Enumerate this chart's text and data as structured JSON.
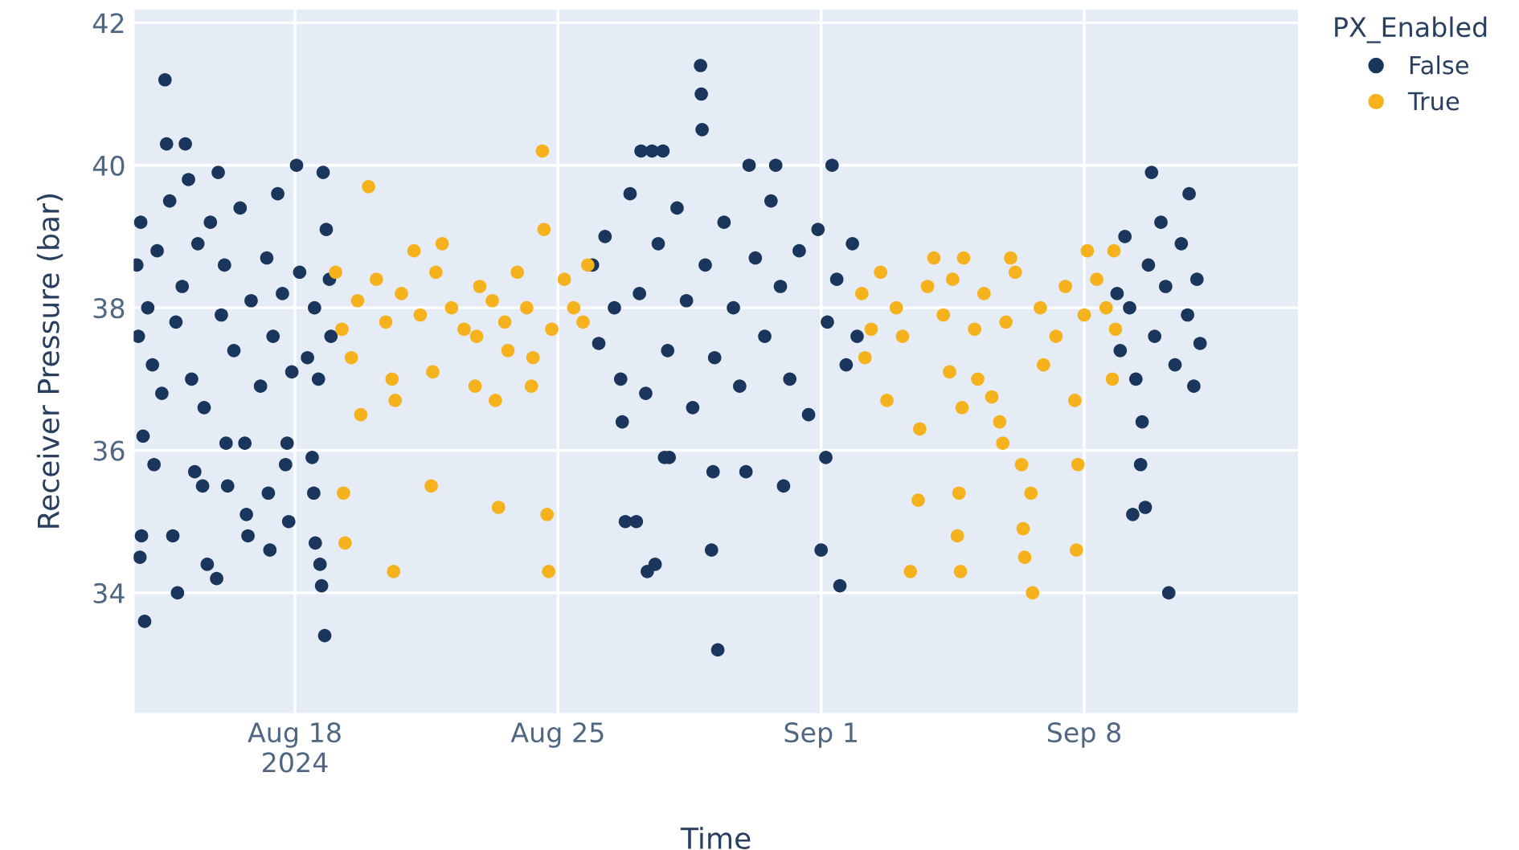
{
  "chart_data": {
    "type": "scatter",
    "xlabel": "Time",
    "ylabel": "Receiver Pressure (bar)",
    "legend_title": "PX_Enabled",
    "legend": "top right",
    "grid": true,
    "marker": "circle",
    "xlim": [
      "2024-08-13T17:00",
      "2024-09-13T17:00"
    ],
    "ylim": [
      32.3,
      42.2
    ],
    "xticks": [
      {
        "value": "2024-08-18",
        "label": "Aug 18\n2024"
      },
      {
        "value": "2024-08-25",
        "label": "Aug 25"
      },
      {
        "value": "2024-09-01",
        "label": "Sep 1"
      },
      {
        "value": "2024-09-08",
        "label": "Sep 8"
      }
    ],
    "yticks": [
      34,
      36,
      38,
      40,
      42
    ],
    "series": [
      {
        "name": "False",
        "color": "#1b365d",
        "x": [
          "2024-08-14T13:00",
          "2024-08-14T14:00",
          "2024-08-15T02:00",
          "2024-08-15T04:00",
          "2024-08-15T23:00",
          "2024-08-18T01:00",
          "2024-08-18T18:00",
          "2024-08-14T00:00",
          "2024-08-14T21:00",
          "2024-08-18T19:00",
          "2024-08-13T22:00",
          "2024-08-13T21:00",
          "2024-08-14T18:00",
          "2024-08-15T16:00",
          "2024-08-15T22:00",
          "2024-08-16T18:00",
          "2024-08-17T08:00",
          "2024-08-17T20:00",
          "2024-08-17T07:00",
          "2024-08-16T17:00",
          "2024-08-15T13:00",
          "2024-08-16T05:00",
          "2024-08-15T08:00",
          "2024-08-13T23:00",
          "2024-08-14T06:00",
          "2024-08-16T04:00",
          "2024-08-16T16:00",
          "2024-08-18T13:00",
          "2024-08-18T17:00",
          "2024-08-18T16:00",
          "2024-08-18T12:00",
          "2024-08-18T11:00",
          "2024-08-17T19:00",
          "2024-08-17T18:00",
          "2024-08-13T19:00",
          "2024-08-13T20:00",
          "2024-08-13T21:30",
          "2024-08-14T02:00",
          "2024-08-14T05:00",
          "2024-08-14T08:00",
          "2024-08-14T11:00",
          "2024-08-14T16:00",
          "2024-08-14T20:00",
          "2024-08-15T00:00",
          "2024-08-15T06:00",
          "2024-08-15T10:00",
          "2024-08-15T14:00",
          "2024-08-15T18:00",
          "2024-08-16T01:00",
          "2024-08-16T03:00",
          "2024-08-16T09:00",
          "2024-08-16T13:00",
          "2024-08-16T20:00",
          "2024-08-17T02:00",
          "2024-08-17T06:00",
          "2024-08-17T10:00",
          "2024-08-17T13:00",
          "2024-08-17T16:00",
          "2024-08-17T22:00",
          "2024-08-18T03:00",
          "2024-08-18T08:00",
          "2024-08-18T12:30",
          "2024-08-18T15:00",
          "2024-08-18T20:00",
          "2024-08-18T22:00",
          "2024-08-18T23:00",
          "2024-08-28T19:00",
          "2024-08-28T19:30",
          "2024-08-28T20:00",
          "2024-08-29T06:00",
          "2024-08-27T02:00",
          "2024-08-27T14:00",
          "2024-08-29T02:00",
          "2024-09-01T00:00",
          "2024-09-01T12:00",
          "2024-08-26T19:00",
          "2024-08-27T09:00",
          "2024-08-27T05:00",
          "2024-08-27T19:00",
          "2024-08-27T12:00",
          "2024-08-30T02:00",
          "2024-08-30T19:00",
          "2024-09-01T07:00",
          "2024-08-29T03:00",
          "2024-08-30T00:00",
          "2024-08-31T00:00",
          "2024-09-01T03:00",
          "2024-08-27T23:00",
          "2024-08-26T17:00",
          "2024-08-27T20:00",
          "2024-08-25T22:00",
          "2024-08-26T02:00",
          "2024-08-26T06:00",
          "2024-08-26T12:00",
          "2024-08-26T16:00",
          "2024-08-26T22:00",
          "2024-08-27T04:00",
          "2024-08-27T08:00",
          "2024-08-27T16:00",
          "2024-08-27T22:00",
          "2024-08-28T04:00",
          "2024-08-28T10:00",
          "2024-08-28T14:00",
          "2024-08-28T22:00",
          "2024-08-29T04:00",
          "2024-08-29T10:00",
          "2024-08-29T16:00",
          "2024-08-29T20:00",
          "2024-08-30T06:00",
          "2024-08-30T12:00",
          "2024-08-30T16:00",
          "2024-08-30T22:00",
          "2024-08-31T04:00",
          "2024-08-31T10:00",
          "2024-08-31T16:00",
          "2024-08-31T22:00",
          "2024-09-01T04:00",
          "2024-09-01T10:00",
          "2024-09-01T16:00",
          "2024-09-01T20:00",
          "2024-09-01T23:00",
          "2024-09-09T19:00",
          "2024-09-10T19:00",
          "2024-09-09T07:00",
          "2024-09-09T15:00",
          "2024-09-09T12:00",
          "2024-09-10T06:00",
          "2024-09-09T13:00",
          "2024-09-08T21:00",
          "2024-09-08T23:00",
          "2024-09-09T02:00",
          "2024-09-09T05:00",
          "2024-09-09T09:00",
          "2024-09-09T17:00",
          "2024-09-09T21:00",
          "2024-09-10T01:00",
          "2024-09-10T04:00",
          "2024-09-10T10:00",
          "2024-09-10T14:00",
          "2024-09-10T18:00",
          "2024-09-10T22:00",
          "2024-09-11T00:00",
          "2024-09-11T02:00"
        ],
        "values": [
          41.2,
          40.3,
          40.3,
          39.8,
          39.9,
          40.0,
          39.9,
          33.6,
          34.0,
          33.4,
          34.8,
          34.5,
          34.8,
          34.4,
          34.2,
          34.8,
          34.6,
          35.0,
          35.4,
          35.1,
          35.5,
          35.5,
          35.7,
          36.2,
          35.8,
          36.1,
          36.1,
          34.7,
          34.1,
          34.4,
          35.4,
          35.9,
          36.1,
          35.8,
          38.6,
          37.6,
          39.2,
          38.0,
          37.2,
          38.8,
          36.8,
          39.5,
          37.8,
          38.3,
          37.0,
          38.9,
          36.6,
          39.2,
          37.9,
          38.6,
          37.4,
          39.4,
          38.1,
          36.9,
          38.7,
          37.6,
          39.6,
          38.2,
          37.1,
          38.5,
          37.3,
          38.0,
          37.0,
          39.1,
          38.4,
          37.6,
          41.4,
          41.0,
          40.5,
          33.2,
          35.0,
          34.4,
          34.6,
          34.6,
          34.1,
          35.0,
          34.3,
          40.2,
          40.2,
          40.2,
          40.0,
          40.0,
          40.0,
          35.7,
          35.7,
          35.5,
          35.9,
          35.9,
          36.4,
          35.9,
          38.6,
          37.5,
          39.0,
          38.0,
          37.0,
          39.6,
          38.2,
          36.8,
          38.9,
          37.4,
          39.4,
          38.1,
          36.6,
          38.6,
          37.3,
          39.2,
          38.0,
          36.9,
          38.7,
          37.6,
          39.5,
          38.3,
          37.0,
          38.8,
          36.5,
          39.1,
          37.8,
          38.4,
          37.2,
          38.9,
          37.6,
          39.9,
          39.6,
          35.1,
          35.2,
          35.8,
          34.0,
          36.4,
          38.2,
          37.4,
          39.0,
          38.0,
          37.0,
          38.6,
          37.6,
          39.2,
          38.3,
          37.2,
          38.9,
          37.9,
          36.9,
          38.4,
          37.5
        ]
      },
      {
        "name": "True",
        "color": "#f5b21d",
        "x": [
          "2024-08-19T23:00",
          "2024-08-24T14:00",
          "2024-08-24T15:00",
          "2024-08-21T04:00",
          "2024-08-21T22:00",
          "2024-08-19T07:00",
          "2024-08-19T08:00",
          "2024-08-20T15:00",
          "2024-08-21T15:00",
          "2024-08-23T10:00",
          "2024-08-24T17:00",
          "2024-08-24T18:00",
          "2024-08-19T18:00",
          "2024-08-20T16:00",
          "2024-08-20T14:00",
          "2024-08-21T16:00",
          "2024-08-22T19:00",
          "2024-08-23T08:00",
          "2024-08-24T07:00",
          "2024-08-24T08:00",
          "2024-08-19T12:00",
          "2024-08-22T20:00",
          "2024-08-23T16:00",
          "2024-08-19T02:00",
          "2024-08-19T06:00",
          "2024-08-19T16:00",
          "2024-08-20T04:00",
          "2024-08-20T10:00",
          "2024-08-20T20:00",
          "2024-08-21T08:00",
          "2024-08-21T18:00",
          "2024-08-22T04:00",
          "2024-08-22T12:00",
          "2024-08-22T22:00",
          "2024-08-23T06:00",
          "2024-08-23T14:00",
          "2024-08-23T22:00",
          "2024-08-24T04:00",
          "2024-08-24T20:00",
          "2024-08-25T04:00",
          "2024-08-25T10:00",
          "2024-08-25T16:00",
          "2024-08-25T19:00",
          "2024-09-03T14:00",
          "2024-09-03T15:00",
          "2024-09-03T09:00",
          "2024-09-02T18:00",
          "2024-09-04T16:00",
          "2024-09-04T15:00",
          "2024-09-04T17:00",
          "2024-09-04T18:00",
          "2024-09-05T13:00",
          "2024-09-05T18:00",
          "2024-09-06T09:00",
          "2024-09-06T08:00",
          "2024-09-06T10:00",
          "2024-09-06T15:00",
          "2024-09-06T14:00",
          "2024-09-07T19:00",
          "2024-09-07T18:00",
          "2024-09-07T20:00",
          "2024-09-08T18:00",
          "2024-09-04T00:00",
          "2024-09-04T19:00",
          "2024-09-06T01:00",
          "2024-09-08T02:00",
          "2024-09-08T19:00",
          "2024-09-02T02:00",
          "2024-09-02T08:00",
          "2024-09-02T14:00",
          "2024-09-03T00:00",
          "2024-09-03T04:00",
          "2024-09-03T20:00",
          "2024-09-04T06:00",
          "2024-09-04T12:00",
          "2024-09-05T02:00",
          "2024-09-05T08:00",
          "2024-09-05T22:00",
          "2024-09-06T04:00",
          "2024-09-06T20:00",
          "2024-09-07T06:00",
          "2024-09-07T12:00",
          "2024-09-08T00:00",
          "2024-09-08T08:00",
          "2024-09-08T14:00",
          "2024-09-08T20:00",
          "2024-09-02T04:00",
          "2024-09-04T10:00",
          "2024-09-05T04:00",
          "2024-09-06T22:00",
          "2024-09-05T20:00"
        ],
        "values": [
          39.7,
          40.2,
          39.1,
          38.8,
          38.9,
          35.4,
          34.7,
          34.3,
          35.5,
          35.2,
          35.1,
          34.3,
          36.5,
          36.7,
          37.0,
          37.1,
          36.9,
          36.7,
          36.9,
          37.3,
          37.3,
          37.6,
          37.4,
          38.5,
          37.7,
          38.1,
          38.4,
          37.8,
          38.2,
          37.9,
          38.5,
          38.0,
          37.7,
          38.3,
          38.1,
          37.8,
          38.5,
          38.0,
          37.7,
          38.4,
          38.0,
          37.8,
          38.6,
          35.3,
          36.3,
          34.3,
          36.7,
          35.4,
          34.8,
          34.3,
          36.6,
          36.75,
          36.4,
          34.9,
          35.8,
          34.5,
          34.0,
          35.4,
          34.6,
          36.7,
          35.8,
          37.0,
          38.7,
          38.7,
          38.7,
          38.8,
          38.8,
          38.2,
          37.7,
          38.5,
          38.0,
          37.6,
          38.3,
          37.9,
          38.4,
          37.7,
          38.2,
          37.8,
          38.5,
          38.0,
          37.6,
          38.3,
          37.9,
          38.4,
          38.0,
          37.7,
          37.3,
          37.1,
          37.0,
          37.2,
          36.1
        ]
      }
    ]
  }
}
